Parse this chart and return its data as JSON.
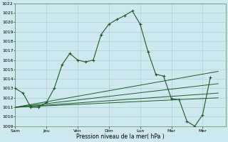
{
  "background_color": "#cde8ee",
  "grid_color": "#a8cdd4",
  "line_color": "#1a5c28",
  "ylim": [
    1009,
    1022
  ],
  "yticks": [
    1009,
    1010,
    1011,
    1012,
    1013,
    1014,
    1015,
    1016,
    1017,
    1018,
    1019,
    1020,
    1021,
    1022
  ],
  "xlabel": "Pression niveau de la mer( hPa )",
  "day_labels": [
    "Sam",
    "Jeu",
    "Ven",
    "Dim",
    "Lun",
    "Mar",
    "Mer"
  ],
  "day_positions": [
    0,
    2,
    4,
    6,
    8,
    10,
    12
  ],
  "xlim": [
    0,
    13.5
  ],
  "series1_x": [
    0.0,
    0.5,
    1.0,
    1.5,
    2.0,
    2.5,
    3.0,
    3.5,
    4.0,
    4.5,
    5.0,
    5.5,
    6.0,
    6.5,
    7.0,
    7.5,
    8.0,
    8.5,
    9.0,
    9.5,
    10.0,
    10.5,
    11.0,
    11.5,
    12.0,
    12.5
  ],
  "series1_y": [
    1013.0,
    1012.5,
    1011.0,
    1011.0,
    1011.5,
    1013.0,
    1015.5,
    1016.7,
    1016.0,
    1015.8,
    1016.0,
    1018.7,
    1019.8,
    1020.3,
    1020.7,
    1021.2,
    1019.8,
    1016.9,
    1014.5,
    1014.3,
    1011.9,
    1011.8,
    1009.5,
    1009.0,
    1010.2,
    1014.2
  ],
  "series2_x": [
    0.0,
    13.0
  ],
  "series2_y": [
    1011.0,
    1014.8
  ],
  "series3_x": [
    0.0,
    13.0
  ],
  "series3_y": [
    1011.0,
    1013.5
  ],
  "series4_x": [
    0.0,
    13.0
  ],
  "series4_y": [
    1011.0,
    1012.5
  ],
  "series5_x": [
    0.0,
    13.0
  ],
  "series5_y": [
    1011.0,
    1012.0
  ]
}
